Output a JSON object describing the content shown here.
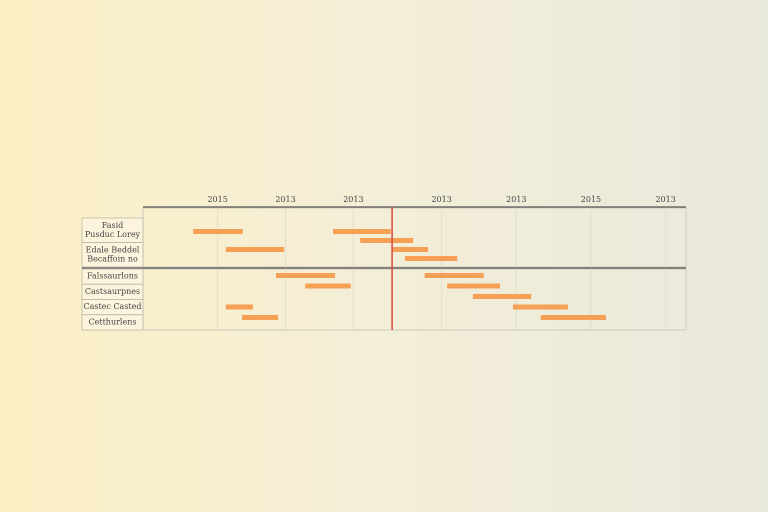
{
  "chart_data": {
    "type": "gantt",
    "color": "#f6a055",
    "marker_color": "#d9473f",
    "xlim": [
      0,
      8
    ],
    "xticks": [
      {
        "value": 1.1,
        "label": "2015"
      },
      {
        "value": 2.1,
        "label": "2013"
      },
      {
        "value": 3.1,
        "label": "2013"
      },
      {
        "value": 4.4,
        "label": "2013"
      },
      {
        "value": 5.5,
        "label": "2013"
      },
      {
        "value": 6.6,
        "label": "2015"
      },
      {
        "value": 7.7,
        "label": "2013"
      }
    ],
    "grid": true,
    "marker": 3.67,
    "groups": [
      {
        "labels": [
          [
            "Fasid",
            "Pusduc Lorey"
          ],
          [
            "Edale Beddel",
            "Becaffoin no"
          ]
        ],
        "rows": [
          [
            [
              0.74,
              1.47
            ],
            [
              2.8,
              3.65
            ]
          ],
          [
            [
              3.2,
              3.98
            ]
          ],
          [
            [
              1.22,
              2.08
            ],
            [
              3.67,
              4.2
            ]
          ],
          [
            [
              3.86,
              4.63
            ]
          ]
        ]
      },
      {
        "labels": [
          [
            "Falssaurlons"
          ],
          [
            "Castsaurpnes"
          ],
          [
            "Castec Casted"
          ],
          [
            "Cetthurlens"
          ]
        ],
        "rows": [
          [
            [
              1.96,
              2.83
            ],
            [
              4.15,
              5.02
            ]
          ],
          [
            [
              2.39,
              3.06
            ],
            [
              4.48,
              5.26
            ]
          ],
          [
            [
              4.86,
              5.72
            ]
          ],
          [
            [
              1.22,
              1.62
            ],
            [
              5.45,
              6.26
            ]
          ],
          [
            [
              1.46,
              1.99
            ],
            [
              5.86,
              6.82
            ]
          ]
        ]
      }
    ]
  }
}
